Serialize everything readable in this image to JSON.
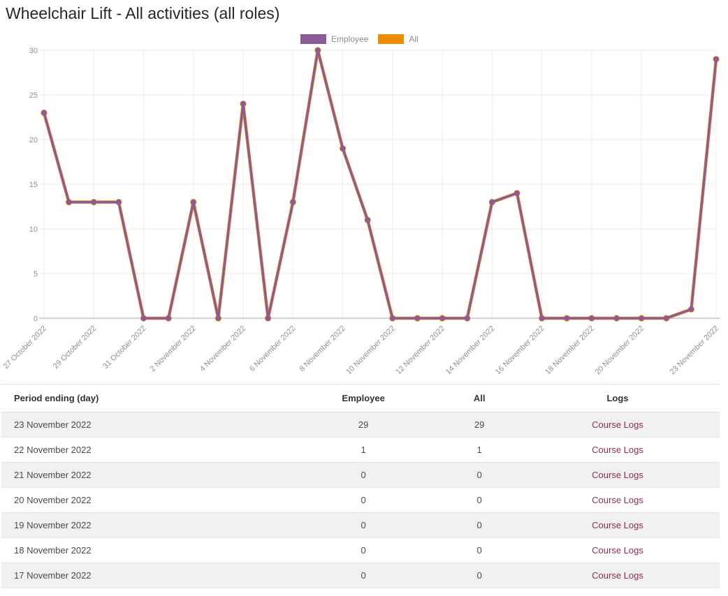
{
  "page_title": "Wheelchair Lift - All activities (all roles)",
  "colors": {
    "employee_line": "#8a5a99",
    "all_line": "#f08c00",
    "gridline": "#ececec",
    "axis_line": "#b6b6ba",
    "axis_text": "#909090",
    "link": "#8e2c41"
  },
  "chart_data": {
    "type": "line",
    "title": "",
    "xlabel": "",
    "ylabel": "",
    "ylim": [
      0,
      30
    ],
    "yticks": [
      0,
      5,
      10,
      15,
      20,
      25,
      30
    ],
    "grid": true,
    "legend_position": "top-center",
    "x": [
      "27 October 2022",
      "28 October 2022",
      "29 October 2022",
      "30 October 2022",
      "31 October 2022",
      "1 November 2022",
      "2 November 2022",
      "3 November 2022",
      "4 November 2022",
      "5 November 2022",
      "6 November 2022",
      "7 November 2022",
      "8 November 2022",
      "9 November 2022",
      "10 November 2022",
      "11 November 2022",
      "12 November 2022",
      "13 November 2022",
      "14 November 2022",
      "15 November 2022",
      "16 November 2022",
      "17 November 2022",
      "18 November 2022",
      "19 November 2022",
      "20 November 2022",
      "21 November 2022",
      "22 November 2022",
      "23 November 2022"
    ],
    "xtick_indices": [
      0,
      2,
      4,
      6,
      8,
      10,
      12,
      14,
      16,
      18,
      20,
      22,
      24,
      27
    ],
    "xtick_labels": [
      "27 October 2022",
      "29 October 2022",
      "31 October 2022",
      "2 November 2022",
      "4 November 2022",
      "6 November 2022",
      "8 November 2022",
      "10 November 2022",
      "12 November 2022",
      "14 November 2022",
      "16 November 2022",
      "18 November 2022",
      "20 November 2022",
      "23 November 2022"
    ],
    "series": [
      {
        "name": "Employee",
        "color": "#8a5a99",
        "values": [
          23,
          13,
          13,
          13,
          0,
          0,
          13,
          0,
          24,
          0,
          13,
          30,
          19,
          11,
          0,
          0,
          0,
          0,
          13,
          14,
          0,
          0,
          0,
          0,
          0,
          0,
          1,
          29
        ]
      },
      {
        "name": "All",
        "color": "#f08c00",
        "values": [
          23,
          13,
          13,
          13,
          0,
          0,
          13,
          0,
          24,
          0,
          13,
          30,
          19,
          11,
          0,
          0,
          0,
          0,
          13,
          14,
          0,
          0,
          0,
          0,
          0,
          0,
          1,
          29
        ]
      }
    ]
  },
  "table": {
    "columns": [
      "Period ending (day)",
      "Employee",
      "All",
      "Logs"
    ],
    "rows": [
      {
        "period": "23 November 2022",
        "employee": "29",
        "all": "29",
        "logs": "Course Logs"
      },
      {
        "period": "22 November 2022",
        "employee": "1",
        "all": "1",
        "logs": "Course Logs"
      },
      {
        "period": "21 November 2022",
        "employee": "0",
        "all": "0",
        "logs": "Course Logs"
      },
      {
        "period": "20 November 2022",
        "employee": "0",
        "all": "0",
        "logs": "Course Logs"
      },
      {
        "period": "19 November 2022",
        "employee": "0",
        "all": "0",
        "logs": "Course Logs"
      },
      {
        "period": "18 November 2022",
        "employee": "0",
        "all": "0",
        "logs": "Course Logs"
      },
      {
        "period": "17 November 2022",
        "employee": "0",
        "all": "0",
        "logs": "Course Logs"
      }
    ]
  }
}
